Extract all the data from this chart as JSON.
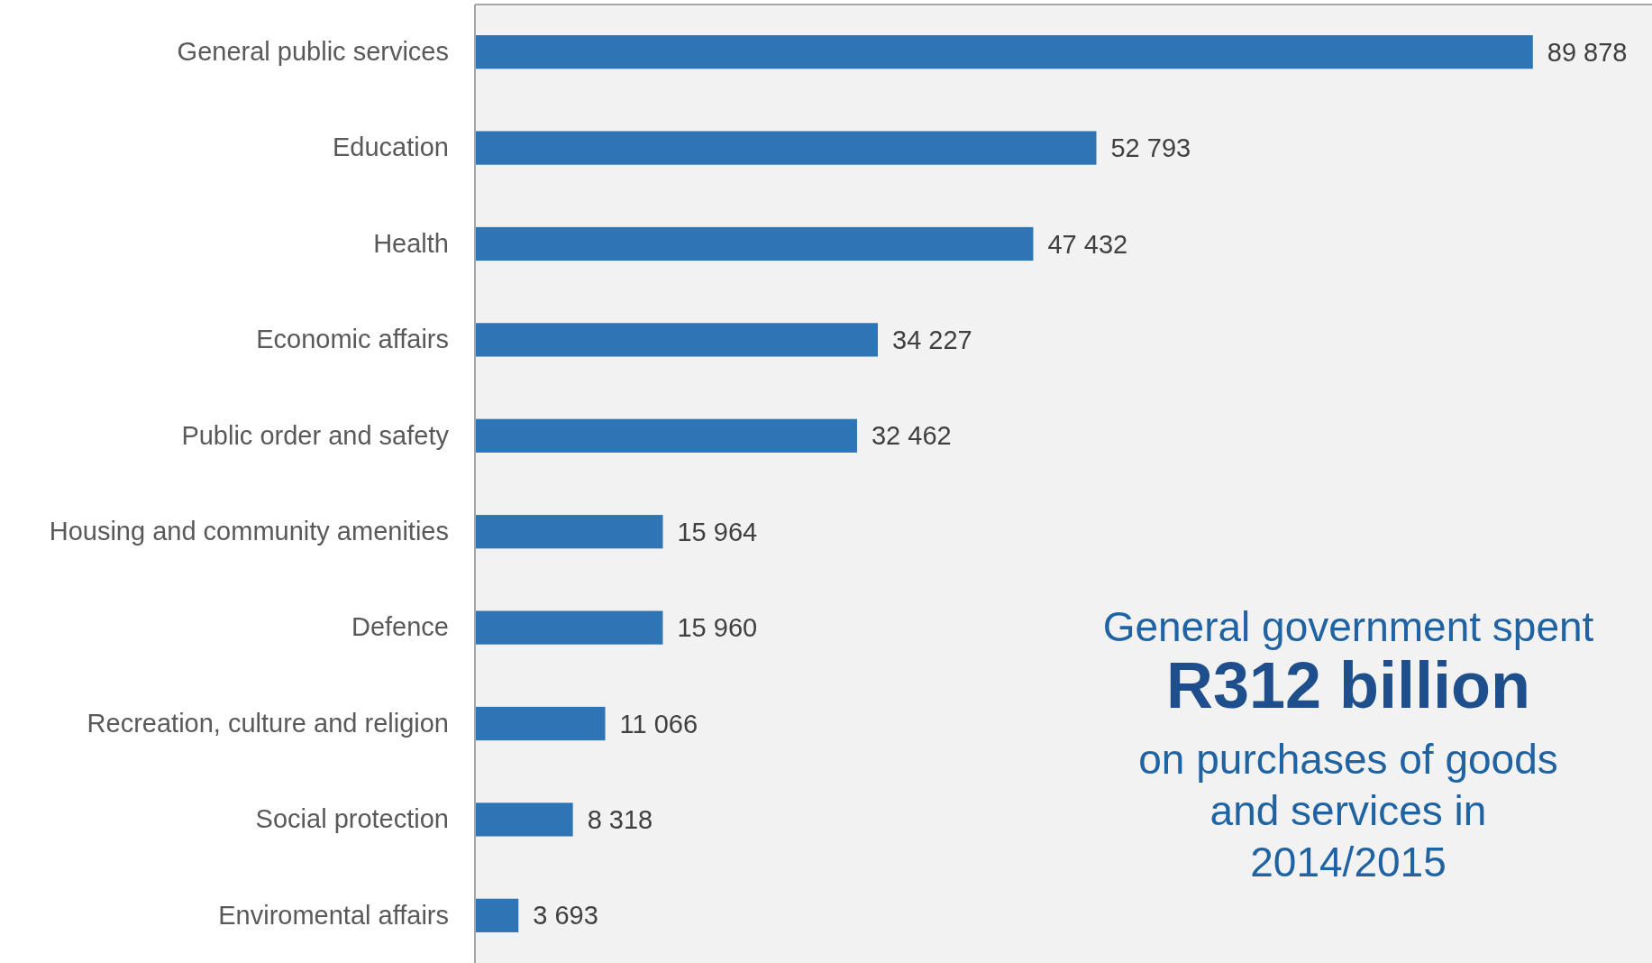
{
  "chart_data": {
    "type": "bar",
    "orientation": "horizontal",
    "categories": [
      "General public services",
      "Education",
      "Health",
      "Economic affairs",
      "Public order and safety",
      "Housing and community amenities",
      "Defence",
      "Recreation, culture and religion",
      "Social protection",
      "Enviromental affairs"
    ],
    "values": [
      89878,
      52793,
      47432,
      34227,
      32462,
      15964,
      15960,
      11066,
      8318,
      3693
    ],
    "value_labels": [
      "89 878",
      "52 793",
      "47 432",
      "34 227",
      "32 462",
      "15 964",
      "15 960",
      "11 066",
      "8 318",
      "3 693"
    ],
    "color": "#2e75b6",
    "xlim": [
      0,
      100000
    ],
    "annotations": [
      "General government spent",
      "R312 billion",
      "on purchases of goods",
      "and services in",
      "2014/2015"
    ]
  }
}
